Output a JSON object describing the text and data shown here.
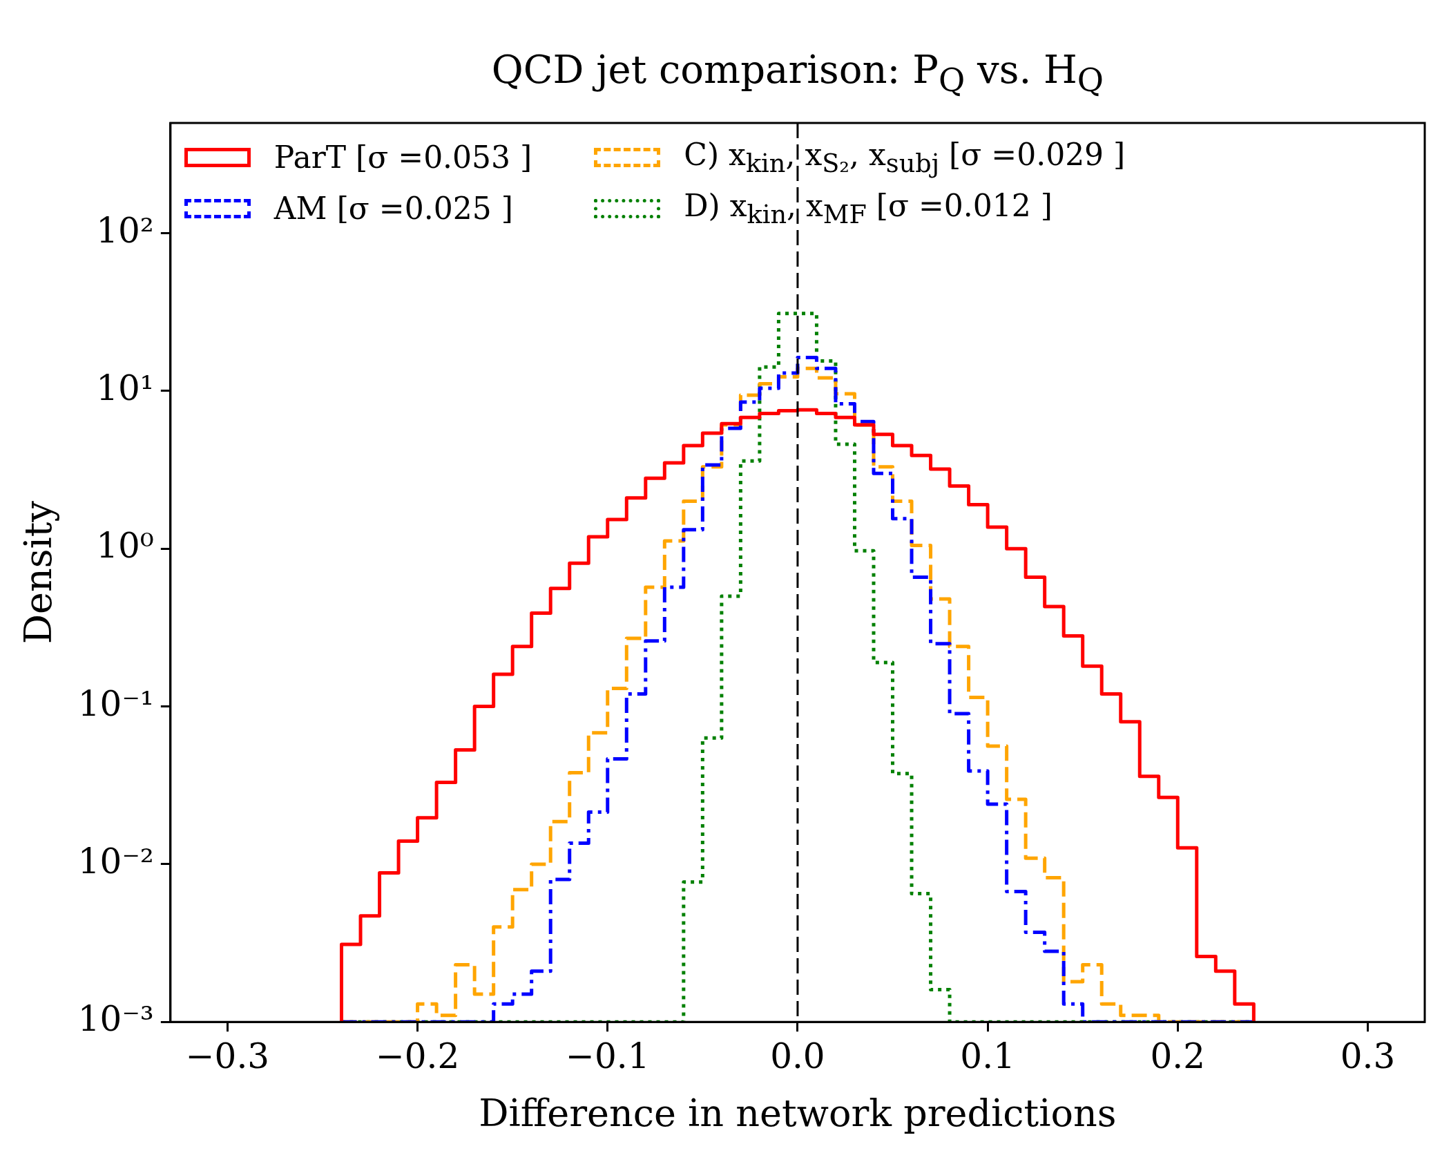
{
  "chart_data": {
    "type": "histogram",
    "title": "QCD jet comparison: P$_{Q}$ vs. H$_{Q}$",
    "xlabel": "Difference in network predictions",
    "ylabel": "Density",
    "bins": [
      -0.24,
      -0.23,
      -0.22,
      -0.21,
      -0.2,
      -0.19,
      -0.18,
      -0.17,
      -0.16,
      -0.15,
      -0.14,
      -0.13,
      -0.12,
      -0.11,
      -0.1,
      -0.09,
      -0.08,
      -0.07,
      -0.06,
      -0.05,
      -0.04,
      -0.03,
      -0.02,
      -0.01,
      0,
      0.01,
      0.02,
      0.03,
      0.04,
      0.05,
      0.06,
      0.07,
      0.08,
      0.09,
      0.1,
      0.11,
      0.12,
      0.13,
      0.14,
      0.15,
      0.16,
      0.17,
      0.18,
      0.19,
      0.2,
      0.21,
      0.22,
      0.23,
      0.24
    ],
    "series": [
      {
        "name": "ParT [σ =0.053 ]",
        "color": "#ff0000",
        "line_style": "solid",
        "values": [
          0.0031,
          0.0047,
          0.0088,
          0.014,
          0.0197,
          0.033,
          0.053,
          0.1,
          0.16,
          0.24,
          0.39,
          0.56,
          0.81,
          1.19,
          1.53,
          2.1,
          2.8,
          3.5,
          4.5,
          5.4,
          6.2,
          6.8,
          7.2,
          7.5,
          7.6,
          7.2,
          6.8,
          6.1,
          5.3,
          4.5,
          3.9,
          3.2,
          2.5,
          1.9,
          1.37,
          1.0,
          0.66,
          0.43,
          0.28,
          0.18,
          0.12,
          0.08,
          0.036,
          0.0265,
          0.0127,
          0.0026,
          0.0021,
          0.0013
        ]
      },
      {
        "name": "AM [σ =0.025 ]",
        "color": "#0000ff",
        "line_style": "dashdot",
        "values": [
          null,
          null,
          null,
          null,
          null,
          null,
          null,
          null,
          0.0013,
          0.0015,
          0.0021,
          0.008,
          0.0136,
          0.0214,
          0.0465,
          0.12,
          0.26,
          0.57,
          1.32,
          3.4,
          5.8,
          8.5,
          10.4,
          13,
          16.3,
          13.9,
          8.3,
          6.4,
          3.0,
          1.55,
          0.66,
          0.25,
          0.09,
          0.039,
          0.024,
          0.0067,
          0.0037,
          0.0028,
          0.0013,
          null,
          null,
          null,
          null,
          null,
          null,
          null,
          null,
          null
        ]
      },
      {
        "name": "C) x$_{kin}$, x$_{S₂}$, x$_{subj}$ [σ =0.029 ]",
        "color": "#ffa500",
        "line_style": "dashed",
        "values": [
          null,
          null,
          null,
          null,
          0.0013,
          0.0011,
          0.0023,
          0.0015,
          0.004,
          0.0069,
          0.01,
          0.0186,
          0.038,
          0.068,
          0.13,
          0.27,
          0.57,
          1.12,
          2.0,
          3.3,
          6.1,
          9.4,
          11.1,
          12.3,
          13.9,
          12.1,
          9.6,
          6.1,
          3.3,
          2.0,
          1.05,
          0.48,
          0.24,
          0.114,
          0.056,
          0.0258,
          0.0109,
          0.0082,
          0.0018,
          0.0023,
          0.0013,
          0.0011,
          0.0011,
          null,
          null,
          null,
          null,
          null
        ]
      },
      {
        "name": "D) x$_{kin}$, x$_{MF}$ [σ =0.012 ]",
        "color": "#008000",
        "line_style": "dotted",
        "values": [
          null,
          null,
          null,
          null,
          null,
          null,
          null,
          null,
          null,
          null,
          null,
          null,
          null,
          null,
          null,
          null,
          null,
          null,
          0.0077,
          0.063,
          0.5,
          3.6,
          14.2,
          31,
          31,
          15.5,
          4.6,
          0.97,
          0.19,
          0.0375,
          0.0065,
          0.0016,
          null,
          null,
          null,
          null,
          null,
          null,
          null,
          null,
          null,
          null,
          null,
          null,
          null,
          null,
          null,
          null
        ]
      }
    ],
    "ref_lines": [
      {
        "axis": "x",
        "value": 0,
        "color": "#000000",
        "line_style": "dashed"
      }
    ],
    "xlim": [
      -0.33,
      0.33
    ],
    "xticks": [
      {
        "value": -0.3,
        "label": "−0.3"
      },
      {
        "value": -0.2,
        "label": "−0.2"
      },
      {
        "value": -0.1,
        "label": "−0.1"
      },
      {
        "value": 0,
        "label": "0.0"
      },
      {
        "value": 0.1,
        "label": "0.1"
      },
      {
        "value": 0.2,
        "label": "0.2"
      },
      {
        "value": 0.3,
        "label": "0.3"
      }
    ],
    "ylim": [
      0.001,
      500
    ],
    "yticks": [
      {
        "value": 0.001,
        "label": "10⁻³"
      },
      {
        "value": 0.01,
        "label": "10⁻²"
      },
      {
        "value": 0.1,
        "label": "10⁻¹"
      },
      {
        "value": 1,
        "label": "10⁰"
      },
      {
        "value": 10,
        "label": "10¹"
      },
      {
        "value": 100,
        "label": "10²"
      }
    ],
    "log": "y",
    "grid": false,
    "legend": "top"
  }
}
